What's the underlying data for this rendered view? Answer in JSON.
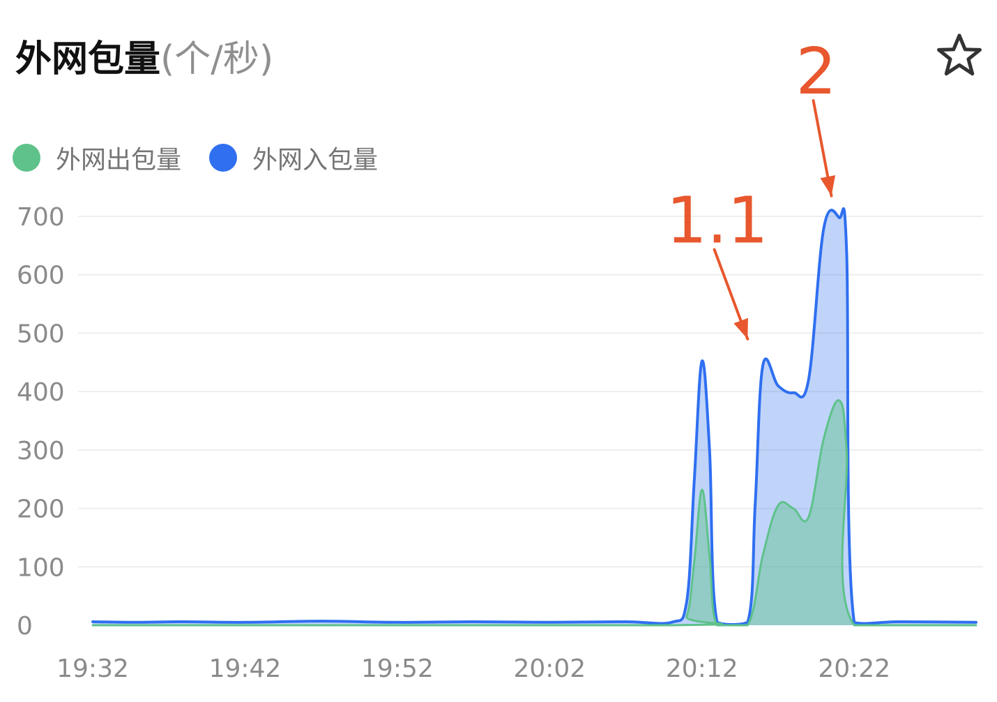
{
  "header": {
    "title": "外网包量",
    "unit": "(个/秒)",
    "favorite_icon": "star-outline-icon"
  },
  "colors": {
    "out_series": "#5ec28a",
    "in_series": "#2f6ff0",
    "annotation": "#e8572e",
    "grid": "#eeeeee",
    "tick": "#8a8a8a"
  },
  "chart_data": {
    "type": "area",
    "title": "外网包量(个/秒)",
    "legend_placement": "top-left",
    "grid": true,
    "ylim": [
      0,
      700
    ],
    "yticks": [
      "0",
      "100",
      "200",
      "300",
      "400",
      "500",
      "600",
      "700"
    ],
    "xlim": [
      "19:32",
      "20:30"
    ],
    "xticks": [
      "19:32",
      "19:42",
      "19:52",
      "20:02",
      "20:12",
      "20:22"
    ],
    "series": [
      {
        "name": "外网出包量",
        "points": [
          [
            "19:32",
            0
          ],
          [
            "20:10",
            0
          ],
          [
            "20:11",
            15
          ],
          [
            "20:11.5",
            110
          ],
          [
            "20:12",
            232
          ],
          [
            "20:12.5",
            120
          ],
          [
            "20:13",
            0
          ],
          [
            "20:15",
            0
          ],
          [
            "20:16",
            120
          ],
          [
            "20:17",
            205
          ],
          [
            "20:18",
            200
          ],
          [
            "20:19",
            185
          ],
          [
            "20:20",
            320
          ],
          [
            "20:21",
            385
          ],
          [
            "20:21.5",
            300
          ],
          [
            "20:22",
            0
          ],
          [
            "20:30",
            0
          ]
        ]
      },
      {
        "name": "外网入包量",
        "points": [
          [
            "19:32",
            6
          ],
          [
            "19:35",
            5
          ],
          [
            "19:38",
            6
          ],
          [
            "19:42",
            5
          ],
          [
            "19:47",
            7
          ],
          [
            "19:52",
            5
          ],
          [
            "19:57",
            6
          ],
          [
            "20:02",
            5
          ],
          [
            "20:07",
            6
          ],
          [
            "20:10",
            5
          ],
          [
            "20:11",
            40
          ],
          [
            "20:11.5",
            250
          ],
          [
            "20:12",
            452
          ],
          [
            "20:12.5",
            300
          ],
          [
            "20:13",
            5
          ],
          [
            "20:15",
            5
          ],
          [
            "20:15.5",
            210
          ],
          [
            "20:16",
            445
          ],
          [
            "20:17",
            410
          ],
          [
            "20:18",
            398
          ],
          [
            "20:19",
            420
          ],
          [
            "20:20",
            680
          ],
          [
            "20:21",
            698
          ],
          [
            "20:21.5",
            640
          ],
          [
            "20:22",
            5
          ],
          [
            "20:25",
            6
          ],
          [
            "20:30",
            5
          ]
        ]
      }
    ],
    "annotations": [
      {
        "text": "1.1",
        "x": "20:13",
        "y": 655,
        "arrow_to": [
          "20:15",
          490
        ]
      },
      {
        "text": "2",
        "x": "20:19.5",
        "y": 910,
        "arrow_to": [
          "20:20.5",
          735
        ]
      }
    ]
  }
}
